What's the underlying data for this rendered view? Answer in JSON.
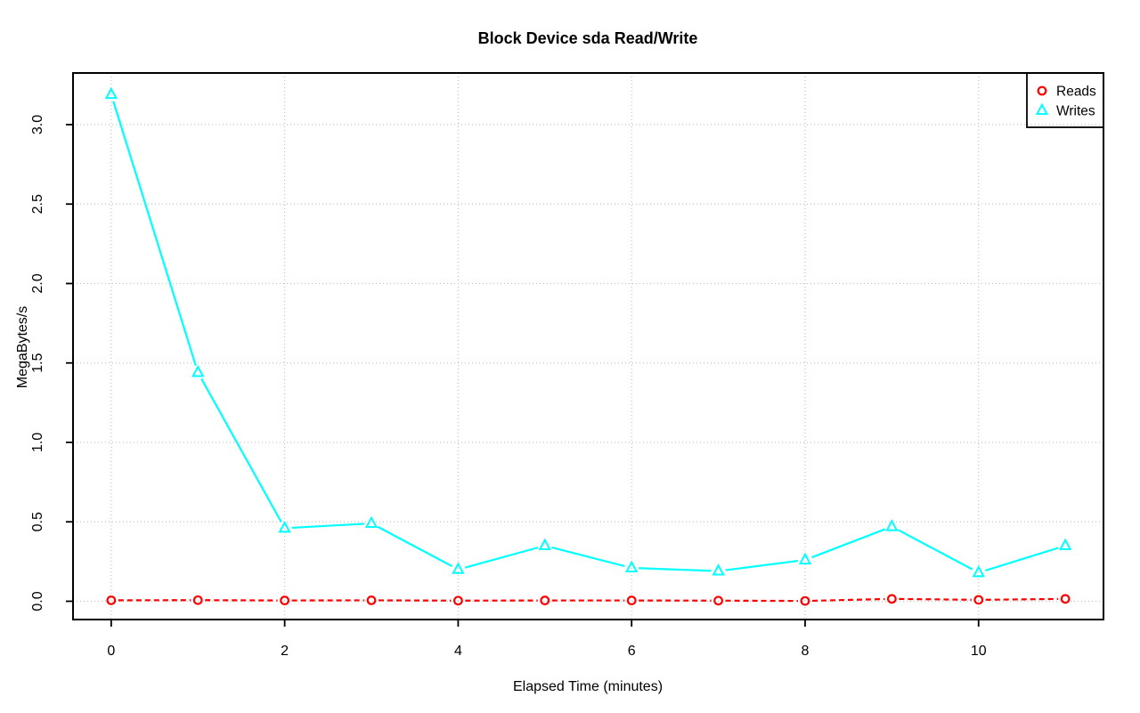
{
  "title": "Block Device sda Read/Write",
  "axes": {
    "x_label": "Elapsed Time (minutes)",
    "y_label": "MegaBytes/s",
    "x_ticks": [
      {
        "value": 0,
        "label": "0"
      },
      {
        "value": 2,
        "label": "2"
      },
      {
        "value": 4,
        "label": "4"
      },
      {
        "value": 6,
        "label": "6"
      },
      {
        "value": 8,
        "label": "8"
      },
      {
        "value": 10,
        "label": "10"
      }
    ],
    "y_ticks": [
      {
        "value": 0.0,
        "label": "0.0"
      },
      {
        "value": 0.5,
        "label": "0.5"
      },
      {
        "value": 1.0,
        "label": "1.0"
      },
      {
        "value": 1.5,
        "label": "1.5"
      },
      {
        "value": 2.0,
        "label": "2.0"
      },
      {
        "value": 2.5,
        "label": "2.5"
      },
      {
        "value": 3.0,
        "label": "3.0"
      }
    ]
  },
  "legend": {
    "items": [
      {
        "label": "Reads",
        "marker": "circle",
        "color": "#ff0000"
      },
      {
        "label": "Writes",
        "marker": "triangle",
        "color": "#00ffff"
      }
    ]
  },
  "colors": {
    "reads": "#ff0000",
    "writes": "#00ffff",
    "grid": "#c3c3c3",
    "axis": "#000000",
    "background": "#ffffff"
  },
  "chart_data": {
    "type": "line",
    "title": "Block Device sda Read/Write",
    "xlabel": "Elapsed Time (minutes)",
    "ylabel": "MegaBytes/s",
    "x": [
      0,
      1,
      2,
      3,
      4,
      5,
      6,
      7,
      8,
      9,
      10,
      11
    ],
    "series": [
      {
        "name": "Reads",
        "color": "#ff0000",
        "marker": "circle",
        "line_style": "dashed",
        "values": [
          0.006,
          0.007,
          0.005,
          0.006,
          0.004,
          0.005,
          0.005,
          0.004,
          0.002,
          0.015,
          0.009,
          0.015
        ]
      },
      {
        "name": "Writes",
        "color": "#00ffff",
        "marker": "triangle",
        "line_style": "solid",
        "values": [
          3.19,
          1.44,
          0.46,
          0.49,
          0.2,
          0.35,
          0.21,
          0.19,
          0.26,
          0.47,
          0.18,
          0.35
        ]
      }
    ],
    "xlim": [
      -0.44,
      11.44
    ],
    "ylim": [
      -0.115,
      3.325
    ],
    "grid": true,
    "legend_position": "top-right"
  }
}
